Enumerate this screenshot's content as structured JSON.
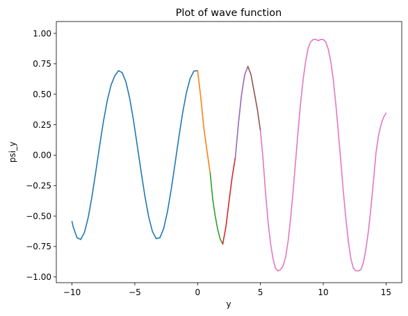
{
  "chart_data": {
    "type": "line",
    "title": "Plot of wave function",
    "xlabel": "y",
    "ylabel": "psi_y",
    "xlim": [
      -11.25,
      16.25
    ],
    "ylim": [
      -1.047,
      1.097
    ],
    "xticks": [
      -10,
      -5,
      0,
      5,
      10,
      15
    ],
    "xtick_labels": [
      "−10",
      "−5",
      "0",
      "5",
      "10",
      "15"
    ],
    "yticks": [
      1.0,
      0.75,
      0.5,
      0.25,
      0.0,
      -0.25,
      -0.5,
      -0.75,
      -1.0
    ],
    "ytick_labels": [
      "1.00",
      "0.75",
      "0.50",
      "0.25",
      "0.00",
      "−0.25",
      "−0.50",
      "−0.75",
      "−1.00"
    ],
    "grid": false,
    "series": [
      {
        "color": "#1f77b4",
        "x": [
          -10,
          -9.9,
          -9.6,
          -9.3,
          -9.0,
          -8.7,
          -8.4,
          -8.1,
          -7.8,
          -7.5,
          -7.2,
          -6.9,
          -6.6,
          -6.3,
          -6.0,
          -5.7,
          -5.4,
          -5.1,
          -4.8,
          -4.5,
          -4.2,
          -3.9,
          -3.6,
          -3.3,
          -3.0,
          -2.7,
          -2.4,
          -2.1,
          -1.8,
          -1.5,
          -1.2,
          -0.9,
          -0.6,
          -0.3,
          0.0
        ],
        "y": [
          -0.545,
          -0.591,
          -0.678,
          -0.692,
          -0.632,
          -0.507,
          -0.334,
          -0.132,
          0.077,
          0.275,
          0.445,
          0.573,
          0.65,
          0.694,
          0.677,
          0.599,
          0.463,
          0.283,
          0.074,
          -0.134,
          -0.335,
          -0.505,
          -0.626,
          -0.686,
          -0.678,
          -0.602,
          -0.464,
          -0.28,
          -0.072,
          0.142,
          0.342,
          0.509,
          0.628,
          0.69,
          0.694
        ]
      },
      {
        "color": "#ff7f0e",
        "x": [
          0.0,
          0.25,
          0.5,
          0.75,
          1.0
        ],
        "y": [
          0.694,
          0.475,
          0.22,
          0.032,
          -0.146
        ]
      },
      {
        "color": "#2ca02c",
        "x": [
          1.0,
          1.2,
          1.4,
          1.6,
          1.8,
          2.0
        ],
        "y": [
          -0.146,
          -0.36,
          -0.5,
          -0.61,
          -0.69,
          -0.73
        ]
      },
      {
        "color": "#d62728",
        "x": [
          2.0,
          2.25,
          2.5,
          2.75,
          3.0
        ],
        "y": [
          -0.73,
          -0.59,
          -0.38,
          -0.18,
          -0.02
        ]
      },
      {
        "color": "#9467bd",
        "x": [
          3.0,
          3.25,
          3.5,
          3.75,
          4.0
        ],
        "y": [
          -0.02,
          0.26,
          0.5,
          0.66,
          0.728
        ]
      },
      {
        "color": "#8c564b",
        "x": [
          4.0,
          4.25,
          4.5,
          4.75,
          5.0
        ],
        "y": [
          0.728,
          0.66,
          0.52,
          0.38,
          0.2
        ]
      },
      {
        "color": "#e377c2",
        "x": [
          5.0,
          5.2,
          5.4,
          5.6,
          5.8,
          6.0,
          6.2,
          6.4,
          6.6,
          6.8,
          7.0,
          7.2,
          7.4,
          7.6,
          7.8,
          8.0,
          8.2,
          8.4,
          8.6,
          8.8,
          9.0,
          9.2,
          9.4,
          9.6,
          9.8,
          10.0,
          10.2,
          10.4,
          10.6,
          10.8,
          11.0,
          11.2,
          11.4,
          11.6,
          11.8,
          12.0,
          12.2,
          12.4,
          12.6,
          12.8,
          13.0,
          13.2,
          13.4,
          13.6,
          13.8,
          14.0,
          14.2,
          14.4,
          14.6,
          14.8,
          15.0
        ],
        "y": [
          0.2,
          -0.02,
          -0.3,
          -0.54,
          -0.72,
          -0.85,
          -0.93,
          -0.95,
          -0.94,
          -0.91,
          -0.84,
          -0.71,
          -0.52,
          -0.3,
          -0.05,
          0.2,
          0.43,
          0.62,
          0.77,
          0.88,
          0.93,
          0.95,
          0.95,
          0.94,
          0.95,
          0.95,
          0.93,
          0.87,
          0.77,
          0.62,
          0.42,
          0.19,
          -0.05,
          -0.3,
          -0.52,
          -0.71,
          -0.85,
          -0.93,
          -0.95,
          -0.95,
          -0.94,
          -0.88,
          -0.77,
          -0.62,
          -0.43,
          -0.21,
          0.02,
          0.16,
          0.25,
          0.31,
          0.345
        ]
      }
    ]
  }
}
